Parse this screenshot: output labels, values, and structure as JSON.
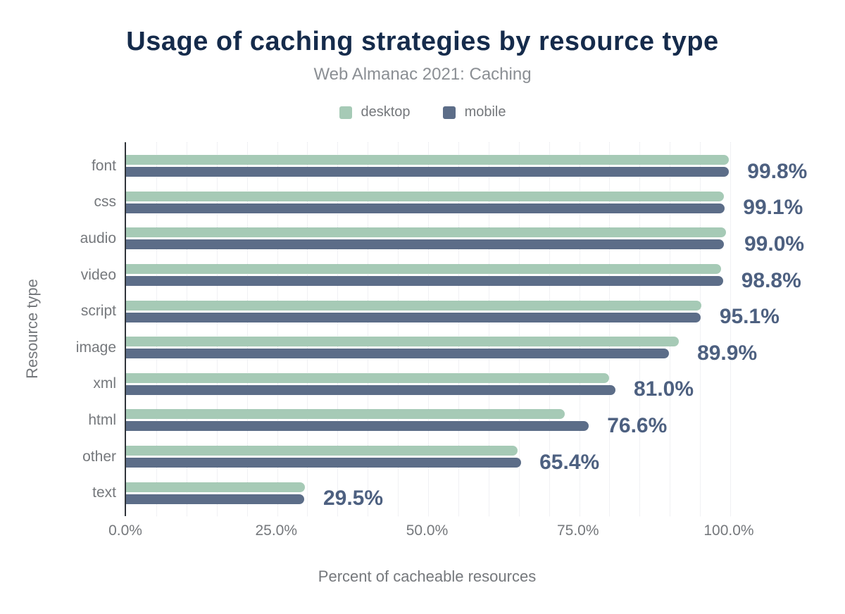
{
  "chart_data": {
    "type": "bar",
    "orientation": "horizontal",
    "title": "Usage of caching strategies by resource type",
    "subtitle": "Web Almanac 2021: Caching",
    "xlabel": "Percent of cacheable resources",
    "ylabel": "Resource type",
    "categories": [
      "font",
      "css",
      "audio",
      "video",
      "script",
      "image",
      "xml",
      "html",
      "other",
      "text"
    ],
    "series": [
      {
        "name": "desktop",
        "color": "#a6cab6",
        "values": [
          99.8,
          98.9,
          99.3,
          98.5,
          95.2,
          91.5,
          79.9,
          72.6,
          64.8,
          29.6
        ]
      },
      {
        "name": "mobile",
        "color": "#5c6d88",
        "values": [
          99.8,
          99.1,
          99.0,
          98.8,
          95.1,
          89.9,
          81.0,
          76.6,
          65.4,
          29.5
        ]
      }
    ],
    "value_labels": [
      "99.8%",
      "99.1%",
      "99.0%",
      "98.8%",
      "95.1%",
      "89.9%",
      "81.0%",
      "76.6%",
      "65.4%",
      "29.5%"
    ],
    "value_labels_series": "mobile",
    "x_ticks": [
      {
        "label": "0.0%",
        "value": 0
      },
      {
        "label": "25.0%",
        "value": 25
      },
      {
        "label": "50.0%",
        "value": 50
      },
      {
        "label": "75.0%",
        "value": 75
      },
      {
        "label": "100.0%",
        "value": 100
      }
    ],
    "xlim": [
      0,
      100
    ],
    "grid": {
      "vertical_minor_step_percent": 5,
      "line_style": "dotted"
    },
    "legend_position": "top"
  },
  "style": {
    "title_color": "#152b4b",
    "subtitle_color": "#8b8f94",
    "axis_text_color": "#75787c",
    "value_label_color": "#4d6080",
    "axis_line_color": "#30343a",
    "gridline_color": "#e2e3e9",
    "background_color": "#ffffff"
  }
}
